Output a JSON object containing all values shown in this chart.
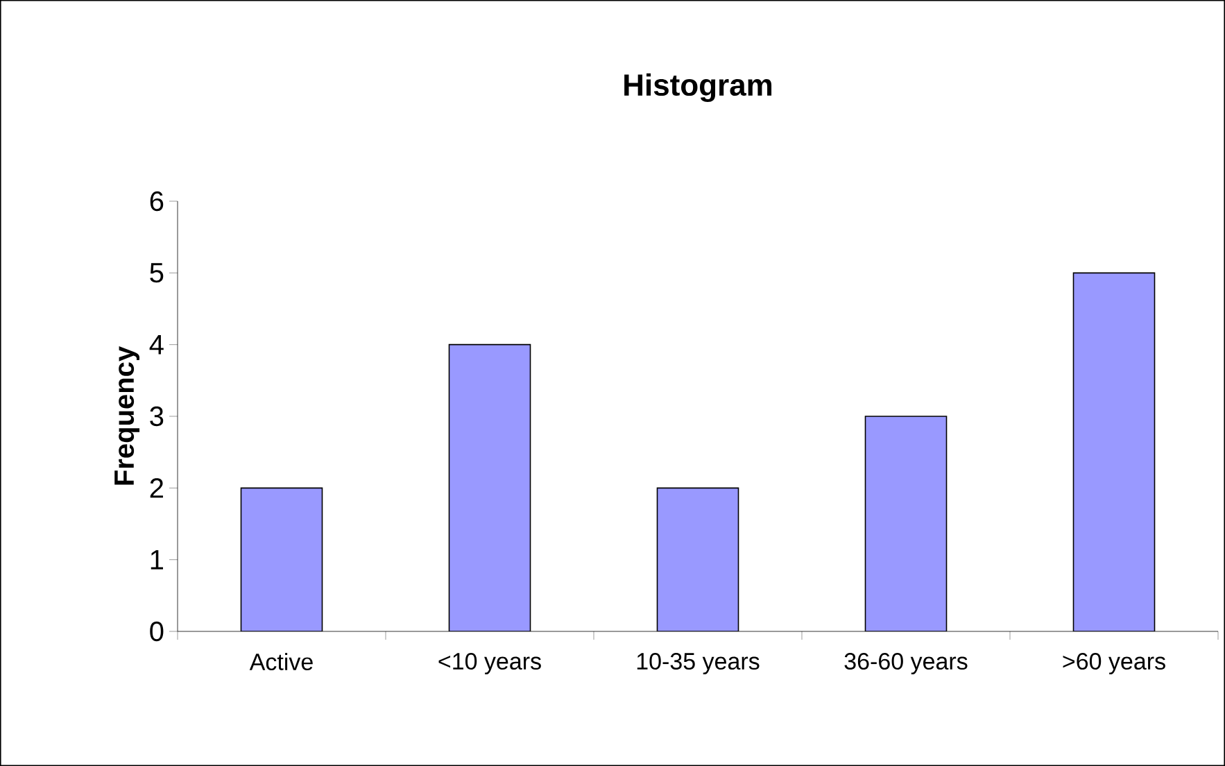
{
  "chart_data": {
    "type": "bar",
    "title": "Histogram",
    "ylabel": "Frequency",
    "categories": [
      "Active",
      "<10 years",
      "10-35 years",
      "36-60 years",
      ">60 years"
    ],
    "values": [
      2,
      4,
      2,
      3,
      5
    ],
    "color": "#9999ff",
    "ylim": [
      0,
      6
    ],
    "yticks": [
      0,
      1,
      2,
      3,
      4,
      5,
      6
    ]
  }
}
